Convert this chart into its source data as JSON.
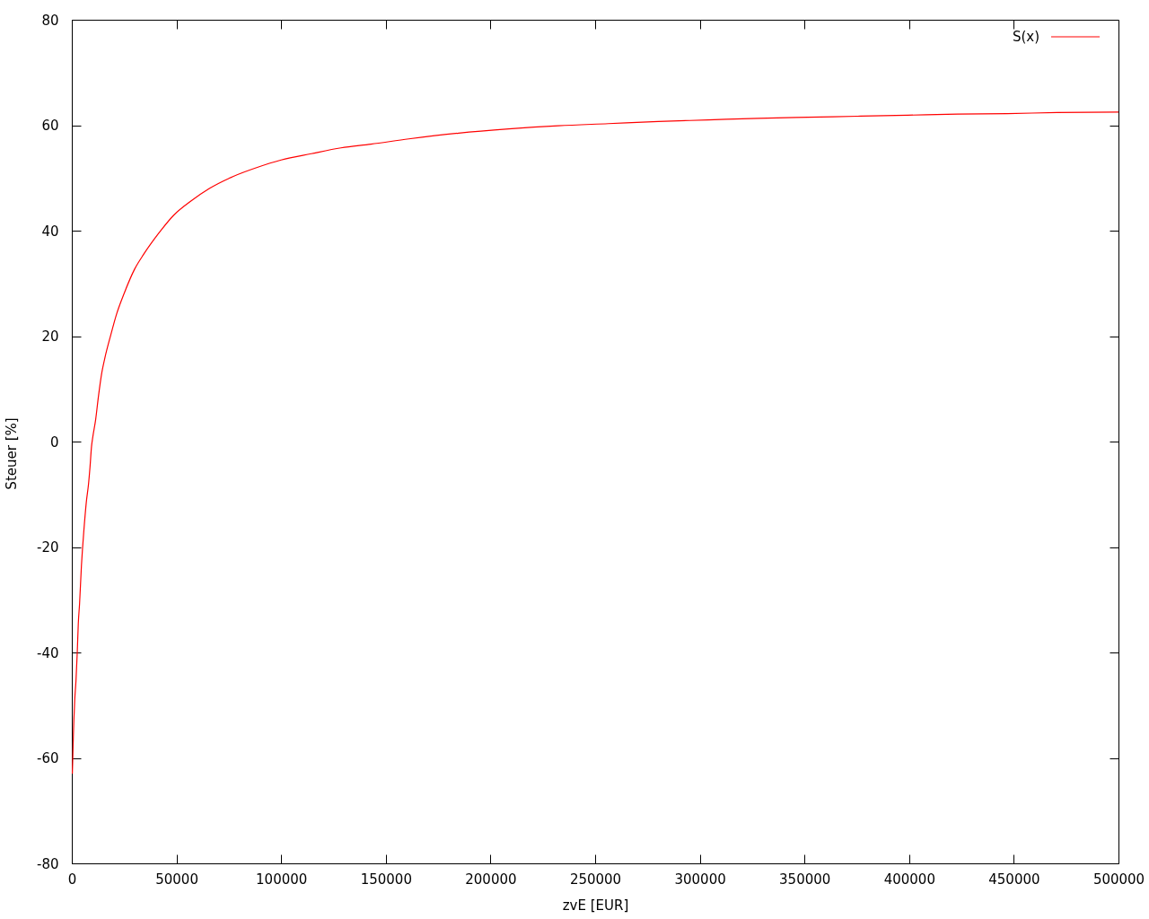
{
  "chart_data": {
    "type": "line",
    "xlabel": "zvE [EUR]",
    "ylabel": "Steuer [%]",
    "x": [
      250,
      500,
      730,
      1000,
      1400,
      2000,
      2600,
      3100,
      3700,
      4600,
      5100,
      5700,
      6900,
      8000,
      8700,
      9400,
      10000,
      11400,
      12700,
      14300,
      15700,
      18600,
      21400,
      25000,
      30000,
      34300,
      41500,
      48600,
      57200,
      65700,
      77200,
      88600,
      100000,
      114400,
      128600,
      142900,
      161000,
      184800,
      208700,
      232400,
      256300,
      280100,
      303900,
      327800,
      351600,
      375400,
      399300,
      423100,
      446900,
      470700,
      500000
    ],
    "series": [
      {
        "name": "S(x)",
        "color": "#ff0000",
        "values": [
          -63,
          -59.5,
          -56,
          -52.7,
          -49,
          -45.3,
          -40,
          -34.5,
          -30.8,
          -23.5,
          -20.4,
          -17.2,
          -11.6,
          -8,
          -4.8,
          -1,
          0.8,
          4.2,
          8.5,
          13,
          15.7,
          20.2,
          24.2,
          28.1,
          32.7,
          35.5,
          39.5,
          42.9,
          45.7,
          48,
          50.3,
          52,
          53.4,
          54.6,
          55.7,
          56.4,
          57.4,
          58.5,
          59.3,
          59.9,
          60.3,
          60.7,
          61,
          61.3,
          61.5,
          61.7,
          61.9,
          62.1,
          62.2,
          62.4,
          62.5
        ]
      }
    ],
    "xlim": [
      0,
      500000
    ],
    "xticks": [
      0,
      50000,
      100000,
      150000,
      200000,
      250000,
      300000,
      350000,
      400000,
      450000,
      500000
    ],
    "ylim": [
      -80,
      80
    ],
    "yticks": [
      -80,
      -60,
      -40,
      -20,
      0,
      20,
      40,
      60,
      80
    ],
    "legend": "top right"
  }
}
